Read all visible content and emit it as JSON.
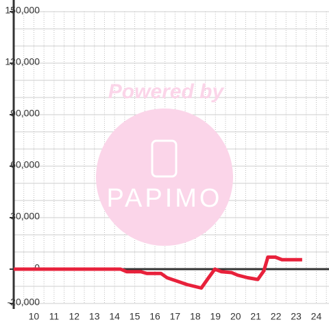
{
  "chart_data": {
    "type": "line",
    "watermark": [
      "Powered by",
      "PAPIMO"
    ],
    "x": [
      9.0,
      10.3,
      14.3,
      14.6,
      15.3,
      15.6,
      16.3,
      16.6,
      17.1,
      17.6,
      18.3,
      18.6,
      18.97,
      19.3,
      19.8,
      20.1,
      20.6,
      21.1,
      21.4,
      21.6,
      21.97,
      22.3,
      23.3
    ],
    "series": [
      {
        "color": "#e8213b",
        "values": [
          0,
          0,
          0,
          -1500,
          -1500,
          -2500,
          -2500,
          -5000,
          -7000,
          -9000,
          -11000,
          -6000,
          0,
          -1500,
          -2000,
          -3500,
          -5000,
          -6000,
          -1000,
          7000,
          7000,
          5500,
          5500
        ]
      }
    ],
    "xlim": [
      9.0,
      24.63
    ],
    "xticks": [
      10,
      11,
      12,
      13,
      14,
      15,
      16,
      17,
      18,
      19,
      20,
      21,
      22,
      23,
      24
    ],
    "xgrid": [
      9.5,
      10,
      10.5,
      11,
      11.5,
      12,
      12.5,
      13,
      13.5,
      14,
      14.5,
      15,
      15.5,
      16,
      16.5,
      17,
      17.5,
      18,
      18.5,
      19,
      19.5,
      20,
      20.5,
      21,
      21.5,
      22,
      22.5,
      23,
      23.5,
      24,
      24.5
    ],
    "ylim": [
      -20000,
      150000
    ],
    "yticks": [
      {
        "value": -20000,
        "label": "-20,000"
      },
      0,
      {
        "value": 30000,
        "label": "30,000"
      },
      {
        "value": 60000,
        "label": "60,000"
      },
      {
        "value": 90000,
        "label": "90,000"
      },
      {
        "value": 120000,
        "label": "120,000"
      },
      {
        "value": 150000,
        "label": "150,000"
      }
    ],
    "ygrid": [
      -10000,
      10000,
      20000,
      40000,
      50000,
      70000,
      80000,
      100000,
      110000,
      130000,
      140000
    ]
  }
}
